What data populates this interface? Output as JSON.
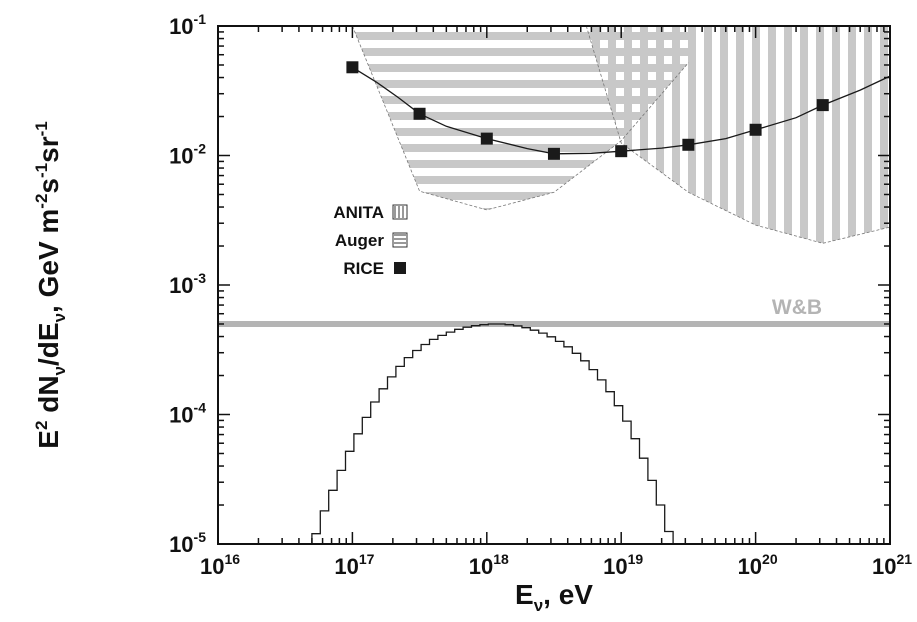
{
  "chart_data": {
    "type": "line",
    "x_scale": "log",
    "y_scale": "log",
    "xlim": [
      1e+16,
      1e+21
    ],
    "ylim": [
      1e-05,
      0.1
    ],
    "x_tick_exponents": [
      "16",
      "17",
      "18",
      "19",
      "20",
      "21"
    ],
    "y_tick_exponents": [
      "-1",
      "-2",
      "-3",
      "-4",
      "-5"
    ],
    "x_tick_base": "10",
    "y_tick_base": "10",
    "xlabel": {
      "main": "E",
      "sub": "ν",
      "rest": ", eV"
    },
    "ylabel": {
      "parts": [
        {
          "t": "E",
          "s": ""
        },
        {
          "t": "2",
          "s": "sup"
        },
        {
          "t": " dN",
          "s": ""
        },
        {
          "t": "ν",
          "s": "sub"
        },
        {
          "t": "/dE",
          "s": ""
        },
        {
          "t": "ν",
          "s": "sub"
        },
        {
          "t": ", GeV m",
          "s": ""
        },
        {
          "t": "-2",
          "s": "sup"
        },
        {
          "t": "s",
          "s": ""
        },
        {
          "t": "-1",
          "s": "sup"
        },
        {
          "t": "sr",
          "s": ""
        },
        {
          "t": "-1",
          "s": "sup"
        }
      ]
    },
    "series": [
      {
        "name": "RICE",
        "style": "line-with-square-markers",
        "color": "#1a1a1a",
        "x": [
          1e+17,
          3.16e+17,
          1e+18,
          3.16e+18,
          1e+19,
          3.16e+19,
          1e+20,
          3.16e+20
        ],
        "y": [
          0.048,
          0.021,
          0.0135,
          0.0103,
          0.0108,
          0.0121,
          0.0158,
          0.0245
        ],
        "curve_x": [
          1e+17,
          1.5e+17,
          2.2e+17,
          3.16e+17,
          5e+17,
          1e+18,
          2e+18,
          3.16e+18,
          6e+18,
          1e+19,
          2e+19,
          3.16e+19,
          6e+19,
          1e+20,
          2e+20,
          3.16e+20,
          6e+20,
          1e+21
        ],
        "curve_y": [
          0.048,
          0.037,
          0.028,
          0.021,
          0.0168,
          0.0135,
          0.0113,
          0.0103,
          0.0104,
          0.0108,
          0.0114,
          0.0121,
          0.0135,
          0.0158,
          0.0196,
          0.0245,
          0.032,
          0.041
        ]
      },
      {
        "name": "Auger",
        "style": "horizontal-hatched-region",
        "color": "#c8c8c8",
        "x": [
          1e+17,
          3.16e+17,
          1e+18,
          3.16e+18,
          1e+19,
          3.16e+19,
          3.16e+19,
          1e+19,
          5.5e+18
        ],
        "y": [
          0.1,
          0.0053,
          0.0038,
          0.0052,
          0.013,
          0.052,
          0.1,
          0.1,
          0.1
        ]
      },
      {
        "name": "ANITA",
        "style": "vertical-hatched-region",
        "color": "#c8c8c8",
        "x": [
          5.5e+18,
          1e+19,
          3.16e+19,
          1e+20,
          3.16e+20,
          1e+21,
          1e+21,
          1e+19
        ],
        "y": [
          0.1,
          0.0125,
          0.0052,
          0.0029,
          0.0021,
          0.0028,
          0.1,
          0.1
        ]
      },
      {
        "name": "W&B",
        "style": "horizontal-line",
        "color": "#b4b4b4",
        "y": 0.0005
      },
      {
        "name": "",
        "style": "step",
        "color": "#1a1a1a",
        "bin_x_start": 5e+16,
        "bin_width_decades": 0.0625,
        "bin_y": [
          1.2e-05,
          1.8e-05,
          2.6e-05,
          3.7e-05,
          5.2e-05,
          7.1e-05,
          9.5e-05,
          0.000125,
          0.000158,
          0.000195,
          0.000235,
          0.000275,
          0.000312,
          0.000347,
          0.00038,
          0.000408,
          0.000433,
          0.000455,
          0.000472,
          0.000485,
          0.000494,
          0.0005,
          0.0005,
          0.000494,
          0.000483,
          0.000468,
          0.000448,
          0.000425,
          0.000398,
          0.000367,
          0.000333,
          0.000297,
          0.00026,
          0.000222,
          0.000185,
          0.00015,
          0.000117,
          8.9e-05,
          6.5e-05,
          4.6e-05,
          3.1e-05,
          2e-05,
          1.25e-05,
          8e-06
        ]
      }
    ],
    "legend": {
      "placement": "upper-left",
      "entries": [
        {
          "label": "ANITA",
          "swatch": "vertical-hatch"
        },
        {
          "label": "Auger",
          "swatch": "horizontal-hatch"
        },
        {
          "label": "RICE",
          "swatch": "solid-square"
        }
      ]
    },
    "annotations": [
      {
        "text": "W&B"
      }
    ],
    "grid": false
  }
}
